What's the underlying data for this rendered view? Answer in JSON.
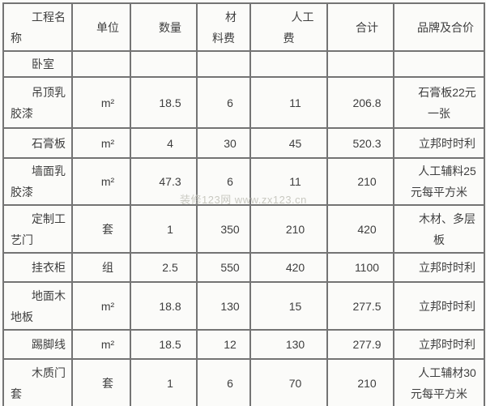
{
  "page": {
    "background": "#fbfbf9",
    "border_color": "#747474",
    "text_color": "#3e3e3e"
  },
  "watermark": {
    "text": "装修123网 www.zx123.cn"
  },
  "table": {
    "headers": [
      "工程名称",
      "单位",
      "数量",
      "材料费",
      "人工费",
      "合计",
      "品牌及合价"
    ],
    "rows": [
      {
        "name": "卧室",
        "unit": "",
        "qty": "",
        "material": "",
        "labor": "",
        "total": "",
        "brand": ""
      },
      {
        "name": "吊顶乳胶漆",
        "unit": "m²",
        "qty": "18.5",
        "material": "6",
        "labor": "11",
        "total": "206.8",
        "brand": "石膏板22元一张"
      },
      {
        "name": "石膏板",
        "unit": "m²",
        "qty": "4",
        "material": "30",
        "labor": "45",
        "total": "520.3",
        "brand": "立邦时时利"
      },
      {
        "name": "墙面乳胶漆",
        "unit": "m²",
        "qty": "47.3",
        "material": "6",
        "labor": "11",
        "total": "210",
        "brand": "人工辅料25元每平方米"
      },
      {
        "name": "定制工艺门",
        "unit": "套",
        "qty": "1",
        "material": "350",
        "labor": "210",
        "total": "420",
        "brand": "木材、多层板"
      },
      {
        "name": "挂衣柜",
        "unit": "组",
        "qty": "2.5",
        "material": "550",
        "labor": "420",
        "total": "1100",
        "brand": "立邦时时利"
      },
      {
        "name": "地面木地板",
        "unit": "m²",
        "qty": "18.8",
        "material": "130",
        "labor": "15",
        "total": "277.5",
        "brand": "立邦时时利"
      },
      {
        "name": "踢脚线",
        "unit": "m²",
        "qty": "18.5",
        "material": "12",
        "labor": "130",
        "total": "277.9",
        "brand": "立邦时时利"
      },
      {
        "name": "木质门套",
        "unit": "套",
        "qty": "1",
        "material": "6",
        "labor": "70",
        "total": "210",
        "brand": "人工辅材30元每平方米"
      }
    ]
  }
}
